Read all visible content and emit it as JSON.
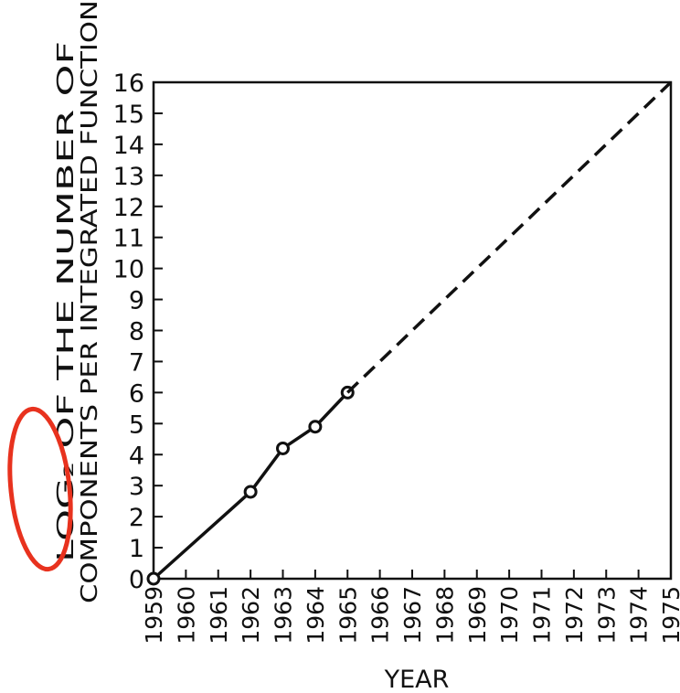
{
  "chart_data": {
    "type": "line",
    "title": "",
    "xlabel": "YEAR",
    "ylabel_line1": "LOG₂ OF THE NUMBER OF",
    "ylabel_line2": "COMPONENTS PER INTEGRATED FUNCTION",
    "xlim": [
      1959,
      1975
    ],
    "ylim": [
      0,
      16
    ],
    "x_ticks": [
      "1959",
      "1960",
      "1961",
      "1962",
      "1963",
      "1964",
      "1965",
      "1966",
      "1967",
      "1968",
      "1969",
      "1970",
      "1971",
      "1972",
      "1973",
      "1974",
      "1975"
    ],
    "y_ticks": [
      "0",
      "1",
      "2",
      "3",
      "4",
      "5",
      "6",
      "7",
      "8",
      "9",
      "10",
      "11",
      "12",
      "13",
      "14",
      "15",
      "16"
    ],
    "grid": false,
    "series": [
      {
        "style": "solid",
        "markers": true,
        "points": [
          {
            "x": 1959,
            "y": 0
          },
          {
            "x": 1962,
            "y": 2.8
          },
          {
            "x": 1963,
            "y": 4.2
          },
          {
            "x": 1964,
            "y": 4.9
          },
          {
            "x": 1965,
            "y": 6
          }
        ]
      },
      {
        "style": "dashed",
        "markers": false,
        "points": [
          {
            "x": 1965,
            "y": 6
          },
          {
            "x": 1975,
            "y": 16
          }
        ]
      }
    ],
    "annotation_color": "#e8321e",
    "line_color": "#111111"
  }
}
